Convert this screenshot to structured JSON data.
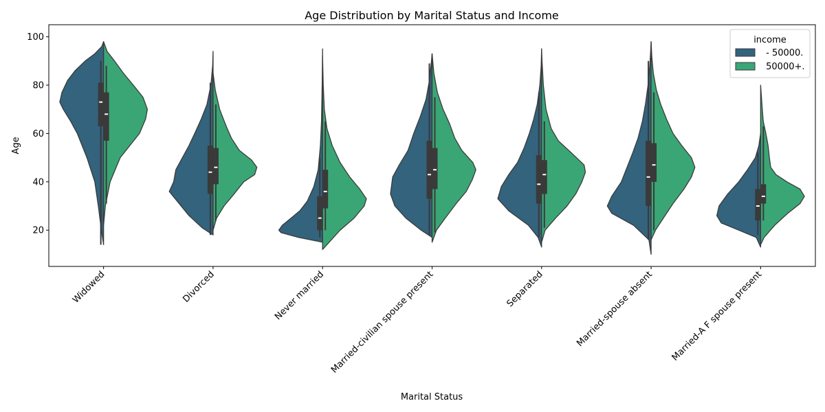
{
  "chart_data": {
    "type": "violin",
    "title": "Age Distribution by Marital Status and Income",
    "xlabel": "Marital Status",
    "ylabel": "Age",
    "ylim": [
      5,
      105
    ],
    "yticks": [
      20,
      40,
      60,
      80,
      100
    ],
    "grid": false,
    "split": true,
    "legend": {
      "title": "income",
      "placement": "top-right",
      "entries": [
        {
          "name": " - 50000.",
          "color": "#33637d"
        },
        {
          "name": " 50000+.",
          "color": "#3aa676"
        }
      ]
    },
    "categories": [
      "Widowed",
      "Divorced",
      "Never married",
      "Married-civilian spouse present",
      "Separated",
      "Married-spouse absent",
      "Married-A F spouse present"
    ],
    "series": [
      {
        "name": " - 50000.",
        "color": "#33637d",
        "stats": [
          {
            "min": 14,
            "q1": 63,
            "median": 73,
            "q3": 81,
            "max": 90,
            "density": [
              [
                14,
                0
              ],
              [
                20,
                0.05
              ],
              [
                30,
                0.12
              ],
              [
                40,
                0.2
              ],
              [
                50,
                0.38
              ],
              [
                60,
                0.6
              ],
              [
                65,
                0.75
              ],
              [
                70,
                0.92
              ],
              [
                73,
                1.0
              ],
              [
                77,
                0.95
              ],
              [
                82,
                0.82
              ],
              [
                86,
                0.65
              ],
              [
                90,
                0.42
              ],
              [
                93,
                0.2
              ],
              [
                96,
                0.04
              ],
              [
                98,
                0
              ]
            ]
          },
          {
            "min": 18,
            "q1": 35,
            "median": 44,
            "q3": 55,
            "max": 81,
            "density": [
              [
                18,
                0
              ],
              [
                21,
                0.25
              ],
              [
                26,
                0.55
              ],
              [
                32,
                0.82
              ],
              [
                36,
                1.0
              ],
              [
                40,
                0.9
              ],
              [
                45,
                0.85
              ],
              [
                50,
                0.7
              ],
              [
                55,
                0.55
              ],
              [
                60,
                0.42
              ],
              [
                66,
                0.27
              ],
              [
                72,
                0.14
              ],
              [
                80,
                0.05
              ],
              [
                88,
                0.01
              ],
              [
                94,
                0
              ]
            ]
          },
          {
            "min": 17,
            "q1": 20,
            "median": 25,
            "q3": 34,
            "max": 50,
            "density": [
              [
                15,
                0
              ],
              [
                17,
                0.55
              ],
              [
                19,
                0.95
              ],
              [
                20,
                1.0
              ],
              [
                22,
                0.92
              ],
              [
                25,
                0.72
              ],
              [
                28,
                0.52
              ],
              [
                32,
                0.35
              ],
              [
                38,
                0.2
              ],
              [
                45,
                0.1
              ],
              [
                55,
                0.05
              ],
              [
                65,
                0.025
              ],
              [
                80,
                0.01
              ],
              [
                95,
                0
              ]
            ]
          },
          {
            "min": 18,
            "q1": 33,
            "median": 43,
            "q3": 57,
            "max": 89,
            "density": [
              [
                17,
                0
              ],
              [
                20,
                0.25
              ],
              [
                25,
                0.6
              ],
              [
                30,
                0.85
              ],
              [
                35,
                0.95
              ],
              [
                42,
                0.9
              ],
              [
                47,
                0.75
              ],
              [
                53,
                0.55
              ],
              [
                60,
                0.42
              ],
              [
                67,
                0.27
              ],
              [
                74,
                0.14
              ],
              [
                82,
                0.06
              ],
              [
                90,
                0.015
              ],
              [
                93,
                0
              ]
            ]
          },
          {
            "min": 17,
            "q1": 31,
            "median": 39,
            "q3": 51,
            "max": 77,
            "density": [
              [
                13,
                0
              ],
              [
                17,
                0.08
              ],
              [
                22,
                0.3
              ],
              [
                28,
                0.75
              ],
              [
                33,
                1.0
              ],
              [
                38,
                0.92
              ],
              [
                43,
                0.75
              ],
              [
                48,
                0.55
              ],
              [
                54,
                0.4
              ],
              [
                60,
                0.28
              ],
              [
                66,
                0.18
              ],
              [
                72,
                0.1
              ],
              [
                80,
                0.04
              ],
              [
                88,
                0.01
              ],
              [
                95,
                0
              ]
            ]
          },
          {
            "min": 16,
            "q1": 30,
            "median": 42,
            "q3": 57,
            "max": 90,
            "density": [
              [
                10,
                0
              ],
              [
                16,
                0.05
              ],
              [
                22,
                0.4
              ],
              [
                27,
                0.9
              ],
              [
                30,
                1.0
              ],
              [
                34,
                0.9
              ],
              [
                40,
                0.68
              ],
              [
                46,
                0.55
              ],
              [
                52,
                0.42
              ],
              [
                58,
                0.3
              ],
              [
                65,
                0.2
              ],
              [
                72,
                0.13
              ],
              [
                80,
                0.07
              ],
              [
                88,
                0.03
              ],
              [
                94,
                0.01
              ],
              [
                98,
                0
              ]
            ]
          },
          {
            "min": 18,
            "q1": 24,
            "median": 30,
            "q3": 37,
            "max": 52,
            "density": [
              [
                13,
                0
              ],
              [
                17,
                0.1
              ],
              [
                20,
                0.5
              ],
              [
                23,
                0.9
              ],
              [
                26,
                1.0
              ],
              [
                30,
                0.95
              ],
              [
                35,
                0.75
              ],
              [
                40,
                0.5
              ],
              [
                45,
                0.3
              ],
              [
                50,
                0.12
              ],
              [
                55,
                0.04
              ],
              [
                60,
                0
              ]
            ]
          }
        ]
      },
      {
        "name": " 50000+.",
        "color": "#3aa676",
        "stats": [
          {
            "min": 31,
            "q1": 57,
            "median": 68,
            "q3": 77,
            "max": 88,
            "density": [
              [
                22,
                0
              ],
              [
                30,
                0.04
              ],
              [
                40,
                0.15
              ],
              [
                50,
                0.38
              ],
              [
                55,
                0.6
              ],
              [
                60,
                0.82
              ],
              [
                66,
                0.96
              ],
              [
                70,
                1.0
              ],
              [
                75,
                0.9
              ],
              [
                80,
                0.68
              ],
              [
                85,
                0.45
              ],
              [
                90,
                0.25
              ],
              [
                94,
                0.08
              ],
              [
                98,
                0
              ]
            ]
          },
          {
            "min": 24,
            "q1": 39,
            "median": 46,
            "q3": 54,
            "max": 72,
            "density": [
              [
                20,
                0
              ],
              [
                25,
                0.08
              ],
              [
                30,
                0.25
              ],
              [
                35,
                0.48
              ],
              [
                40,
                0.7
              ],
              [
                43,
                0.95
              ],
              [
                46,
                1.0
              ],
              [
                49,
                0.88
              ],
              [
                53,
                0.6
              ],
              [
                58,
                0.42
              ],
              [
                63,
                0.3
              ],
              [
                70,
                0.15
              ],
              [
                78,
                0.05
              ],
              [
                85,
                0
              ]
            ]
          },
          {
            "min": 20,
            "q1": 29,
            "median": 36,
            "q3": 45,
            "max": 65,
            "density": [
              [
                12,
                0
              ],
              [
                15,
                0.15
              ],
              [
                20,
                0.4
              ],
              [
                25,
                0.72
              ],
              [
                30,
                0.95
              ],
              [
                33,
                1.0
              ],
              [
                37,
                0.85
              ],
              [
                42,
                0.62
              ],
              [
                48,
                0.4
              ],
              [
                55,
                0.22
              ],
              [
                62,
                0.1
              ],
              [
                70,
                0.04
              ],
              [
                80,
                0.015
              ],
              [
                92,
                0
              ]
            ]
          },
          {
            "min": 19,
            "q1": 37,
            "median": 45,
            "q3": 54,
            "max": 75,
            "density": [
              [
                15,
                0
              ],
              [
                20,
                0.1
              ],
              [
                25,
                0.3
              ],
              [
                31,
                0.55
              ],
              [
                36,
                0.78
              ],
              [
                41,
                0.92
              ],
              [
                45,
                1.0
              ],
              [
                48,
                0.93
              ],
              [
                53,
                0.68
              ],
              [
                58,
                0.52
              ],
              [
                64,
                0.4
              ],
              [
                70,
                0.25
              ],
              [
                77,
                0.12
              ],
              [
                85,
                0.04
              ],
              [
                93,
                0
              ]
            ]
          },
          {
            "min": 21,
            "q1": 35,
            "median": 43,
            "q3": 49,
            "max": 65,
            "density": [
              [
                15,
                0
              ],
              [
                20,
                0.08
              ],
              [
                25,
                0.32
              ],
              [
                30,
                0.58
              ],
              [
                35,
                0.78
              ],
              [
                40,
                0.92
              ],
              [
                44,
                1.0
              ],
              [
                47,
                0.97
              ],
              [
                52,
                0.68
              ],
              [
                57,
                0.38
              ],
              [
                62,
                0.22
              ],
              [
                70,
                0.1
              ],
              [
                80,
                0.04
              ],
              [
                90,
                0.01
              ],
              [
                95,
                0
              ]
            ]
          },
          {
            "min": 20,
            "q1": 40,
            "median": 47,
            "q3": 56,
            "max": 77,
            "density": [
              [
                16,
                0
              ],
              [
                20,
                0.1
              ],
              [
                25,
                0.28
              ],
              [
                31,
                0.5
              ],
              [
                37,
                0.75
              ],
              [
                42,
                0.92
              ],
              [
                46,
                1.0
              ],
              [
                50,
                0.92
              ],
              [
                55,
                0.7
              ],
              [
                60,
                0.5
              ],
              [
                66,
                0.35
              ],
              [
                72,
                0.22
              ],
              [
                78,
                0.12
              ],
              [
                85,
                0.05
              ],
              [
                92,
                0.015
              ],
              [
                98,
                0
              ]
            ]
          },
          {
            "min": 24,
            "q1": 31,
            "median": 34,
            "q3": 39,
            "max": 63,
            "density": [
              [
                14,
                0
              ],
              [
                17,
                0.08
              ],
              [
                22,
                0.32
              ],
              [
                27,
                0.62
              ],
              [
                31,
                0.9
              ],
              [
                34,
                1.0
              ],
              [
                37,
                0.9
              ],
              [
                40,
                0.6
              ],
              [
                43,
                0.35
              ],
              [
                46,
                0.23
              ],
              [
                50,
                0.2
              ],
              [
                55,
                0.17
              ],
              [
                60,
                0.12
              ],
              [
                65,
                0.06
              ],
              [
                72,
                0.03
              ],
              [
                80,
                0
              ]
            ]
          }
        ]
      }
    ]
  }
}
